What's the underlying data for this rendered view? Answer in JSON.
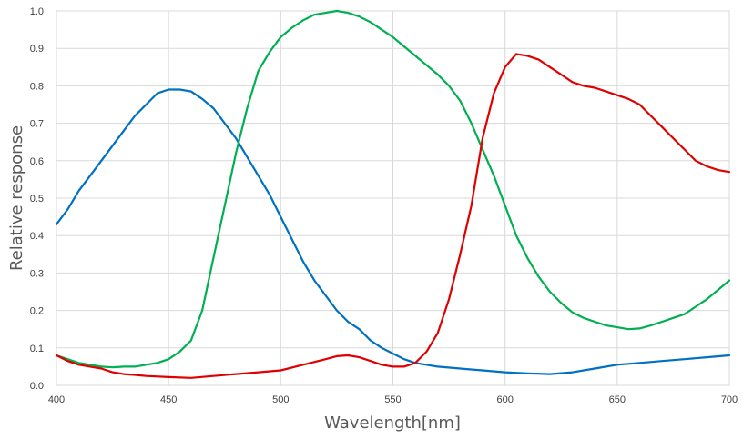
{
  "chart_data": {
    "type": "line",
    "title": "",
    "xlabel": "Wavelength[nm]",
    "ylabel": "Relative response",
    "xlim": [
      400,
      700
    ],
    "ylim": [
      0,
      1.0
    ],
    "x_ticks": [
      "400",
      "450",
      "500",
      "550",
      "600",
      "650",
      "700"
    ],
    "y_ticks": [
      "0.0",
      "0.1",
      "0.2",
      "0.3",
      "0.4",
      "0.5",
      "0.6",
      "0.7",
      "0.8",
      "0.9",
      "1.0"
    ],
    "grid": true,
    "legend": "none",
    "series": [
      {
        "color": "#0070c0",
        "points": [
          [
            400,
            0.43
          ],
          [
            405,
            0.47
          ],
          [
            410,
            0.52
          ],
          [
            415,
            0.56
          ],
          [
            420,
            0.6
          ],
          [
            425,
            0.64
          ],
          [
            430,
            0.68
          ],
          [
            435,
            0.72
          ],
          [
            440,
            0.75
          ],
          [
            445,
            0.78
          ],
          [
            450,
            0.79
          ],
          [
            455,
            0.79
          ],
          [
            460,
            0.785
          ],
          [
            465,
            0.765
          ],
          [
            470,
            0.74
          ],
          [
            475,
            0.7
          ],
          [
            480,
            0.66
          ],
          [
            485,
            0.61
          ],
          [
            490,
            0.56
          ],
          [
            495,
            0.51
          ],
          [
            500,
            0.45
          ],
          [
            505,
            0.39
          ],
          [
            510,
            0.33
          ],
          [
            515,
            0.28
          ],
          [
            520,
            0.24
          ],
          [
            525,
            0.2
          ],
          [
            530,
            0.17
          ],
          [
            535,
            0.15
          ],
          [
            540,
            0.12
          ],
          [
            545,
            0.1
          ],
          [
            550,
            0.085
          ],
          [
            555,
            0.07
          ],
          [
            560,
            0.06
          ],
          [
            570,
            0.05
          ],
          [
            580,
            0.045
          ],
          [
            590,
            0.04
          ],
          [
            600,
            0.035
          ],
          [
            610,
            0.032
          ],
          [
            620,
            0.03
          ],
          [
            630,
            0.035
          ],
          [
            640,
            0.045
          ],
          [
            650,
            0.055
          ],
          [
            660,
            0.06
          ],
          [
            670,
            0.065
          ],
          [
            680,
            0.07
          ],
          [
            690,
            0.075
          ],
          [
            700,
            0.08
          ]
        ]
      },
      {
        "color": "#00b050",
        "points": [
          [
            400,
            0.08
          ],
          [
            405,
            0.07
          ],
          [
            410,
            0.06
          ],
          [
            415,
            0.055
          ],
          [
            420,
            0.05
          ],
          [
            425,
            0.048
          ],
          [
            430,
            0.05
          ],
          [
            435,
            0.05
          ],
          [
            440,
            0.055
          ],
          [
            445,
            0.06
          ],
          [
            450,
            0.07
          ],
          [
            455,
            0.09
          ],
          [
            460,
            0.12
          ],
          [
            465,
            0.2
          ],
          [
            470,
            0.34
          ],
          [
            475,
            0.48
          ],
          [
            480,
            0.62
          ],
          [
            485,
            0.74
          ],
          [
            490,
            0.84
          ],
          [
            495,
            0.89
          ],
          [
            500,
            0.93
          ],
          [
            505,
            0.955
          ],
          [
            510,
            0.975
          ],
          [
            515,
            0.99
          ],
          [
            520,
            0.995
          ],
          [
            525,
            1.0
          ],
          [
            530,
            0.995
          ],
          [
            535,
            0.985
          ],
          [
            540,
            0.97
          ],
          [
            545,
            0.95
          ],
          [
            550,
            0.93
          ],
          [
            555,
            0.905
          ],
          [
            560,
            0.88
          ],
          [
            565,
            0.855
          ],
          [
            570,
            0.83
          ],
          [
            575,
            0.8
          ],
          [
            580,
            0.76
          ],
          [
            585,
            0.7
          ],
          [
            590,
            0.63
          ],
          [
            595,
            0.56
          ],
          [
            600,
            0.48
          ],
          [
            605,
            0.4
          ],
          [
            610,
            0.34
          ],
          [
            615,
            0.29
          ],
          [
            620,
            0.25
          ],
          [
            625,
            0.22
          ],
          [
            630,
            0.195
          ],
          [
            635,
            0.18
          ],
          [
            640,
            0.17
          ],
          [
            645,
            0.16
          ],
          [
            650,
            0.155
          ],
          [
            655,
            0.15
          ],
          [
            660,
            0.152
          ],
          [
            665,
            0.16
          ],
          [
            670,
            0.17
          ],
          [
            675,
            0.18
          ],
          [
            680,
            0.19
          ],
          [
            685,
            0.21
          ],
          [
            690,
            0.23
          ],
          [
            695,
            0.255
          ],
          [
            700,
            0.28
          ]
        ]
      },
      {
        "color": "#e00000",
        "points": [
          [
            400,
            0.08
          ],
          [
            405,
            0.065
          ],
          [
            410,
            0.055
          ],
          [
            415,
            0.05
          ],
          [
            420,
            0.045
          ],
          [
            425,
            0.035
          ],
          [
            430,
            0.03
          ],
          [
            435,
            0.028
          ],
          [
            440,
            0.025
          ],
          [
            450,
            0.022
          ],
          [
            460,
            0.02
          ],
          [
            470,
            0.025
          ],
          [
            480,
            0.03
          ],
          [
            490,
            0.035
          ],
          [
            500,
            0.04
          ],
          [
            510,
            0.055
          ],
          [
            520,
            0.07
          ],
          [
            525,
            0.078
          ],
          [
            530,
            0.08
          ],
          [
            535,
            0.075
          ],
          [
            540,
            0.065
          ],
          [
            545,
            0.055
          ],
          [
            550,
            0.05
          ],
          [
            555,
            0.05
          ],
          [
            560,
            0.06
          ],
          [
            565,
            0.09
          ],
          [
            570,
            0.14
          ],
          [
            575,
            0.23
          ],
          [
            580,
            0.35
          ],
          [
            585,
            0.48
          ],
          [
            590,
            0.66
          ],
          [
            595,
            0.78
          ],
          [
            600,
            0.85
          ],
          [
            605,
            0.885
          ],
          [
            610,
            0.88
          ],
          [
            615,
            0.87
          ],
          [
            620,
            0.85
          ],
          [
            625,
            0.83
          ],
          [
            630,
            0.81
          ],
          [
            635,
            0.8
          ],
          [
            640,
            0.795
          ],
          [
            645,
            0.785
          ],
          [
            650,
            0.775
          ],
          [
            655,
            0.765
          ],
          [
            660,
            0.75
          ],
          [
            665,
            0.72
          ],
          [
            670,
            0.69
          ],
          [
            675,
            0.66
          ],
          [
            680,
            0.63
          ],
          [
            685,
            0.6
          ],
          [
            690,
            0.585
          ],
          [
            695,
            0.575
          ],
          [
            700,
            0.57
          ]
        ]
      }
    ]
  }
}
